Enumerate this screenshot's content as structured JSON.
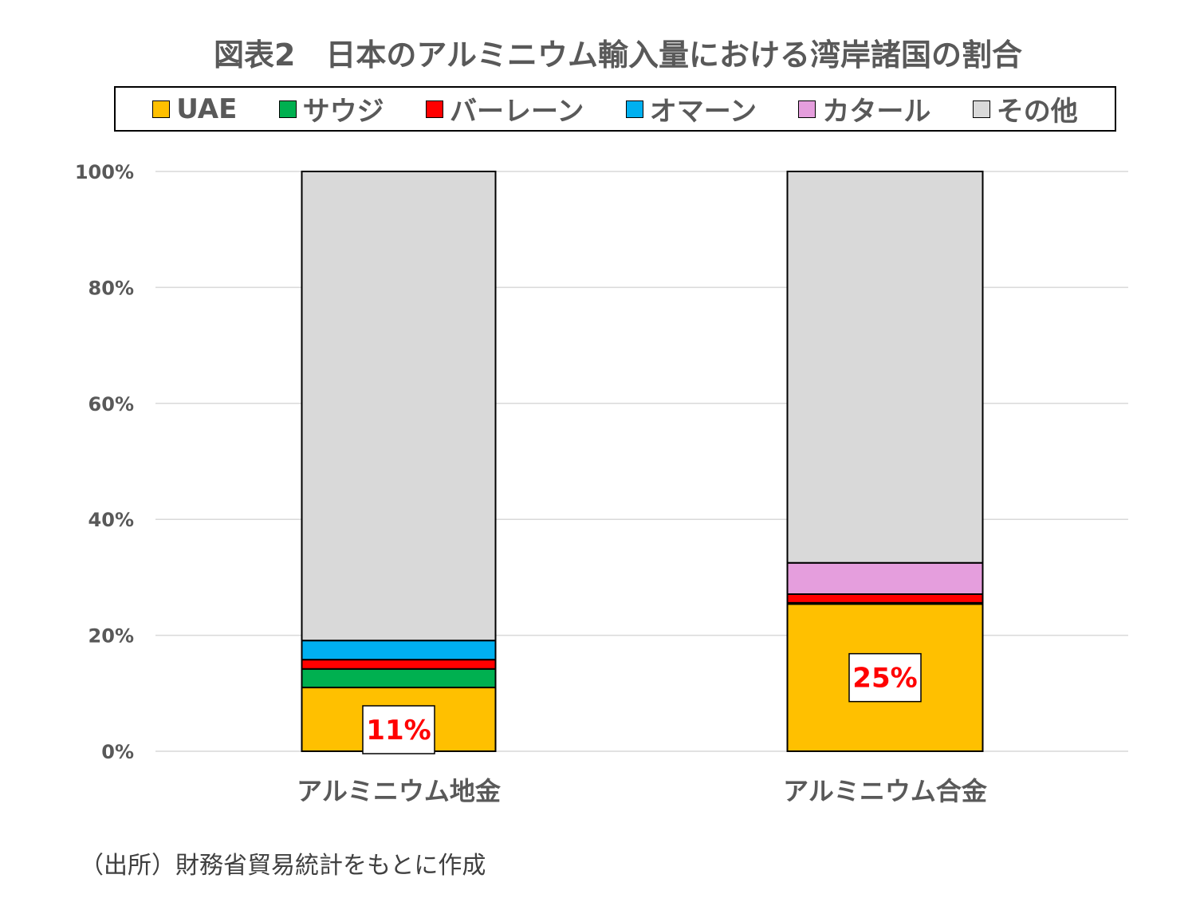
{
  "chart_data": {
    "type": "stacked-bar-100",
    "title": "図表2　日本のアルミニウム輸入量における湾岸諸国の割合",
    "categories": [
      "アルミニウム地金",
      "アルミニウム合金"
    ],
    "series": [
      {
        "name": "UAE",
        "color": "#FFC000",
        "values": [
          11.0,
          25.4
        ]
      },
      {
        "name": "サウジ",
        "color": "#00B050",
        "values": [
          3.2,
          0.2
        ]
      },
      {
        "name": "バーレーン",
        "color": "#FF0000",
        "values": [
          1.6,
          1.5
        ]
      },
      {
        "name": "オマーン",
        "color": "#00B0F0",
        "values": [
          3.3,
          0
        ]
      },
      {
        "name": "カタール",
        "color": "#E59EDD",
        "values": [
          0,
          5.4
        ]
      },
      {
        "name": "その他",
        "color": "#D9D9D9",
        "values": [
          80.9,
          67.5
        ]
      }
    ],
    "data_labels": [
      "11%",
      "25%"
    ],
    "yticks": [
      "0%",
      "20%",
      "40%",
      "60%",
      "80%",
      "100%"
    ],
    "ylim": [
      0,
      100
    ],
    "grid": true,
    "legend": "top",
    "source": "（出所）財務省貿易統計をもとに作成"
  }
}
